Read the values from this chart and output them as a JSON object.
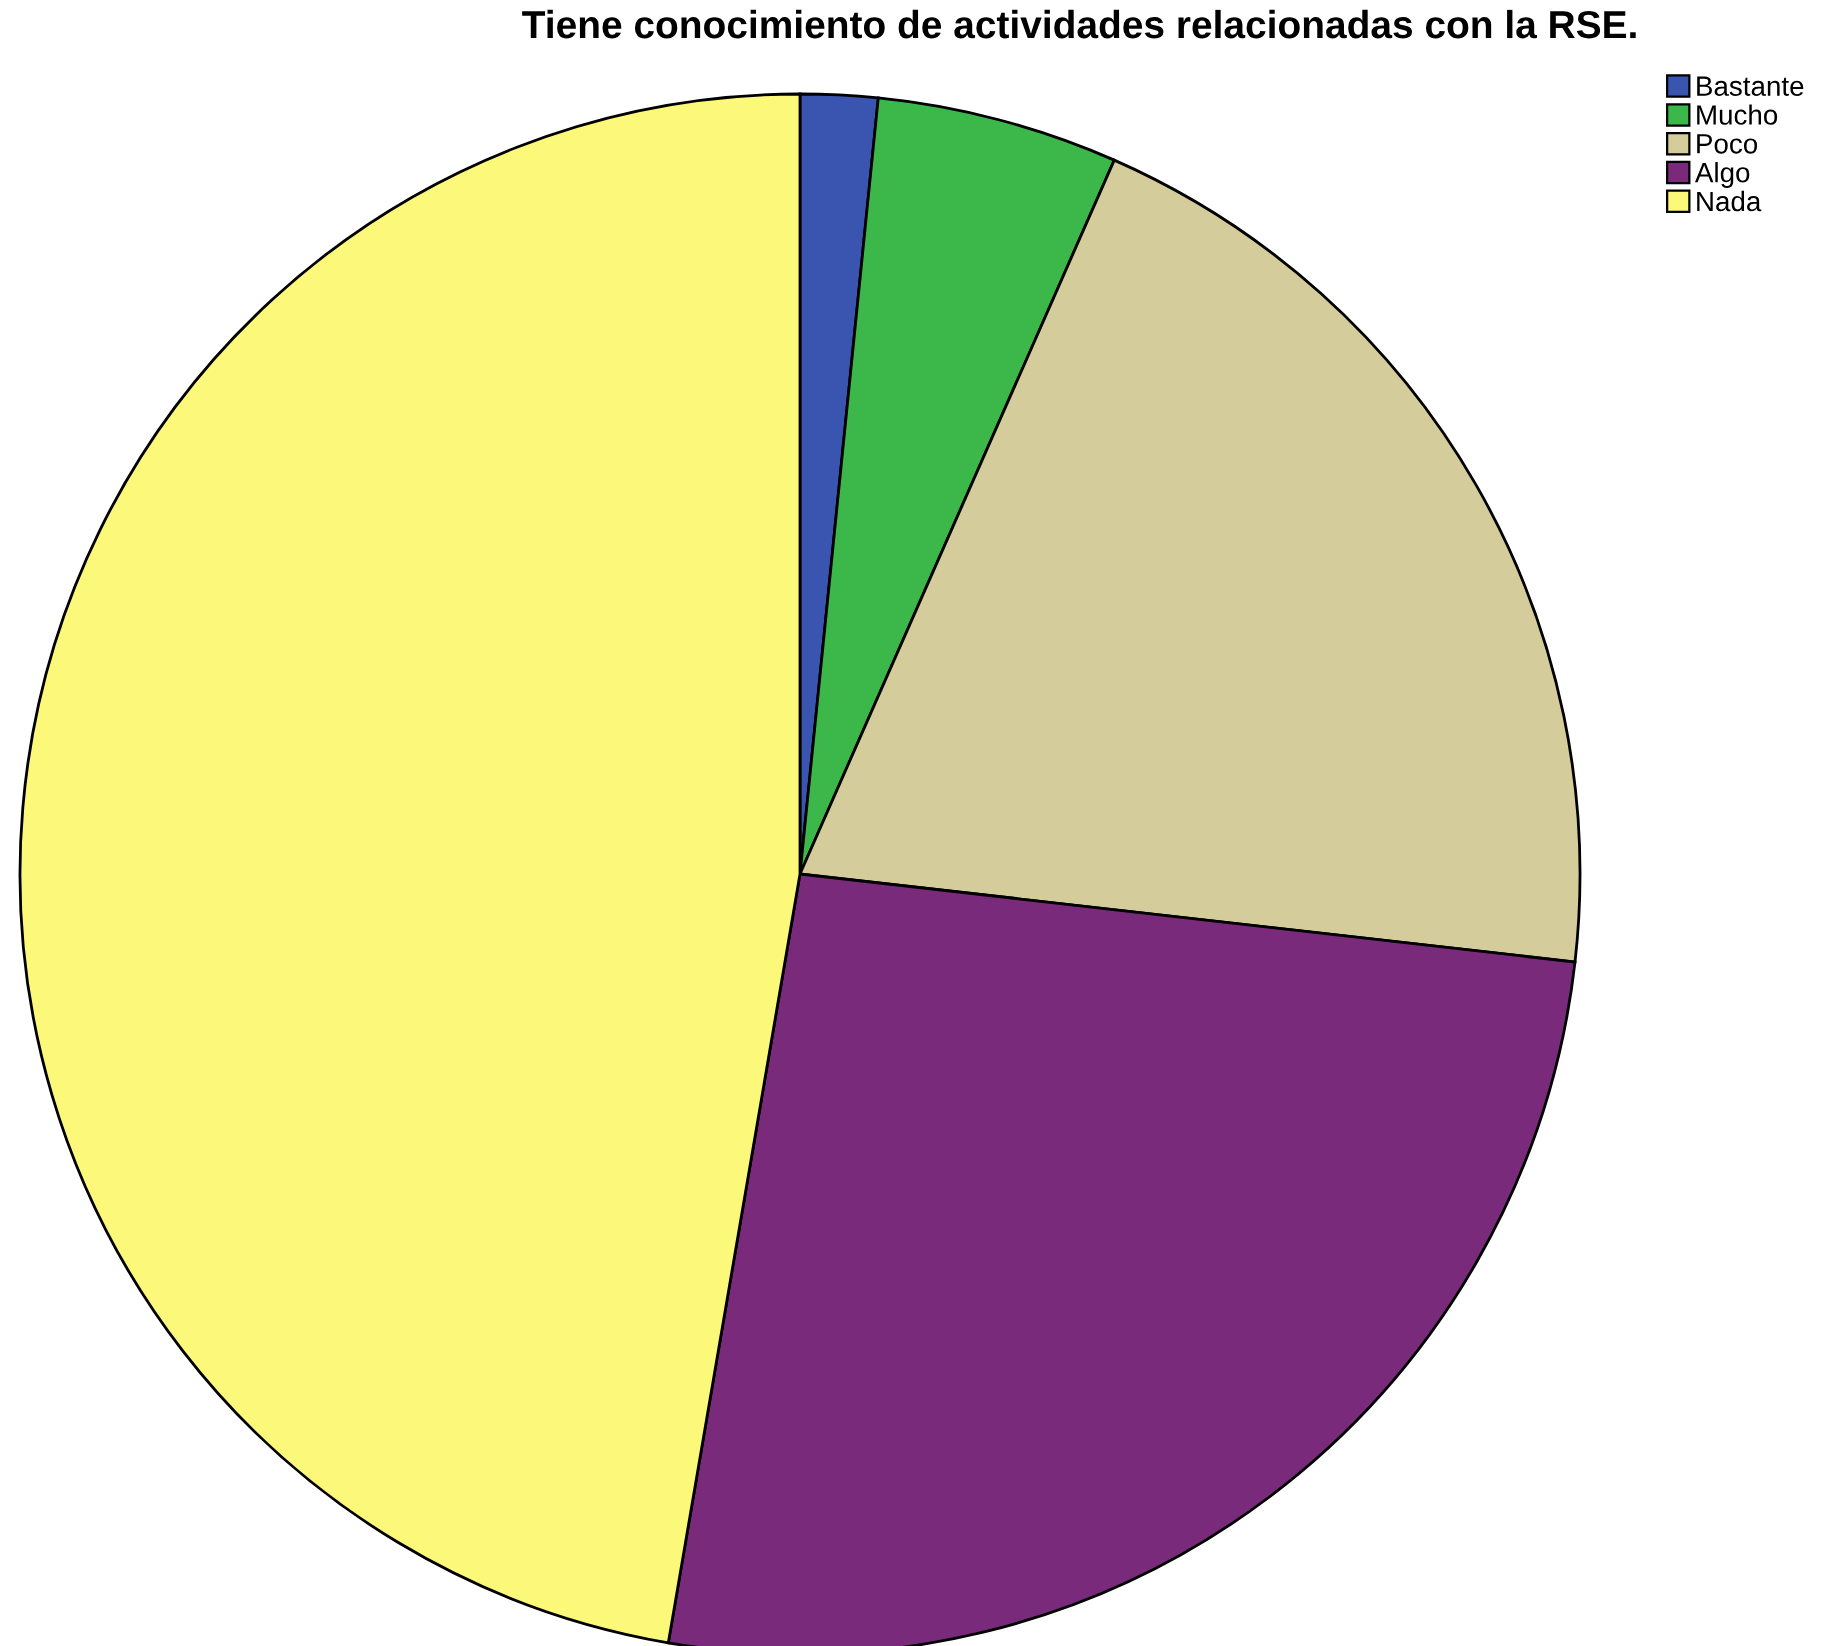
{
  "chart_data": {
    "type": "pie",
    "title": "Tiene conocimiento de actividades relacionadas con la RSE.",
    "categories": [
      "Bastante",
      "Mucho",
      "Poco",
      "Algo",
      "Nada"
    ],
    "values": [
      1.6,
      5.0,
      20.2,
      25.9,
      47.3
    ],
    "colors": [
      "#3a55b0",
      "#3cb84a",
      "#d4cc9a",
      "#7a2a7a",
      "#fbf87a"
    ],
    "legend": "top right"
  }
}
